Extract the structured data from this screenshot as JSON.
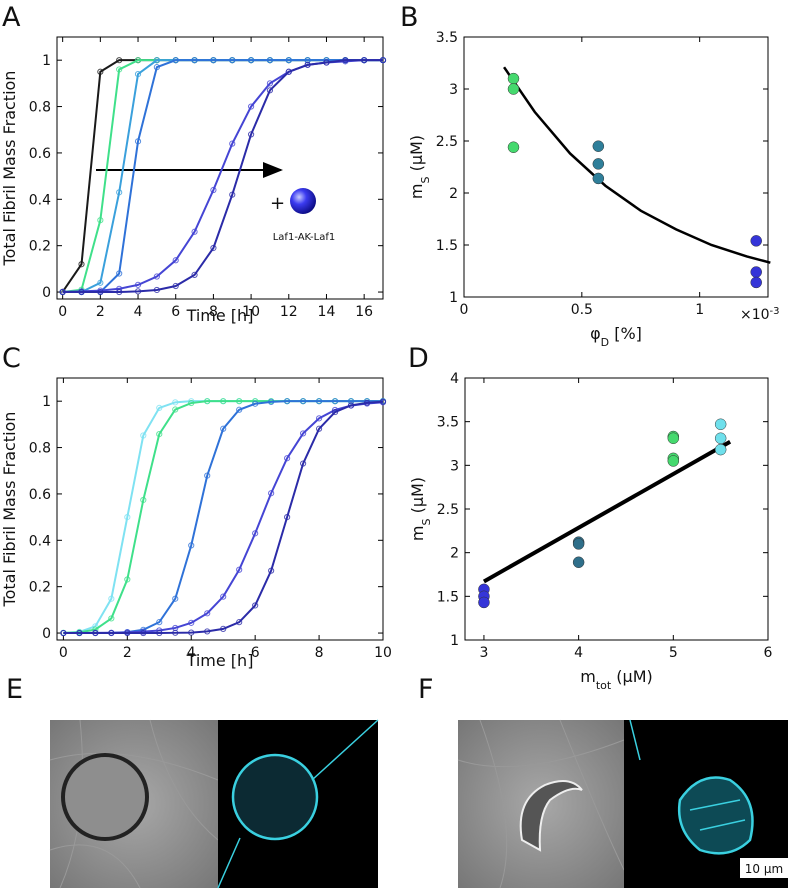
{
  "chart_data": [
    {
      "type": "line",
      "panel_label": "A",
      "ylabel": "Total Fibril Mass Fraction",
      "xlabel": "Time [h]",
      "xlim": [
        -0.3,
        17
      ],
      "xticks": [
        0,
        2,
        4,
        6,
        8,
        10,
        12,
        14,
        16
      ],
      "ylim": [
        -0.03,
        1.1
      ],
      "yticks": [
        0,
        0.2,
        0.4,
        0.6,
        0.8,
        1
      ],
      "marker": "circle",
      "annotations": [
        "+",
        "Laf1-AK-Laf1"
      ],
      "x": [
        0,
        1,
        2,
        3,
        4,
        5,
        6,
        7,
        8,
        9,
        10,
        11,
        12,
        13,
        14,
        15,
        16,
        17
      ],
      "series": [
        {
          "color": "#1a1a1a",
          "values": [
            0.001,
            0.12,
            0.95,
            1,
            1,
            1,
            1,
            1,
            1,
            1,
            1,
            1,
            1,
            1,
            1,
            1,
            1,
            1
          ]
        },
        {
          "color": "#3fe08a",
          "values": [
            0,
            0.01,
            0.31,
            0.96,
            1,
            1,
            1,
            1,
            1,
            1,
            1,
            1,
            1,
            1,
            1,
            1,
            1,
            1
          ]
        },
        {
          "color": "#3aa0dc",
          "values": [
            0,
            0,
            0.04,
            0.43,
            0.94,
            1,
            1,
            1,
            1,
            1,
            1,
            1,
            1,
            1,
            1,
            1,
            1,
            1
          ]
        },
        {
          "color": "#2f72d8",
          "values": [
            0,
            0,
            0,
            0.08,
            0.65,
            0.97,
            1,
            1,
            1,
            1,
            1,
            1,
            1,
            1,
            1,
            1,
            1,
            1
          ]
        },
        {
          "color": "#4545d4",
          "values": [
            0.001,
            0.003,
            0.006,
            0.014,
            0.031,
            0.067,
            0.137,
            0.26,
            0.44,
            0.64,
            0.8,
            0.9,
            0.95,
            0.98,
            0.99,
            0.995,
            1,
            1
          ]
        },
        {
          "color": "#2b2ba8",
          "values": [
            0,
            0,
            0,
            0,
            0.003,
            0.009,
            0.026,
            0.074,
            0.19,
            0.42,
            0.68,
            0.87,
            0.95,
            0.98,
            0.99,
            1,
            1,
            1
          ]
        }
      ]
    },
    {
      "type": "scatter",
      "panel_label": "B",
      "ylabel": {
        "main": "m",
        "sub": "S",
        "unit": " (μM)"
      },
      "xlabel": {
        "main": "φ",
        "sub": "D",
        "unit": " [%]"
      },
      "multiplier": {
        "main": "×10",
        "sup": "-3"
      },
      "xlim": [
        0,
        1.29
      ],
      "xticks": [
        0,
        0.5,
        1
      ],
      "ylim": [
        1,
        3.5
      ],
      "yticks": [
        1,
        1.5,
        2,
        2.5,
        3,
        3.5
      ],
      "series": [
        {
          "color": "#45d96e",
          "x": [
            0.21,
            0.21,
            0.21
          ],
          "values": [
            3.1,
            3.0,
            2.44
          ]
        },
        {
          "color": "#2f7f9a",
          "x": [
            0.57,
            0.57,
            0.57
          ],
          "values": [
            2.45,
            2.28,
            2.14
          ]
        },
        {
          "color": "#3535d8",
          "x": [
            1.24,
            1.24,
            1.24
          ],
          "values": [
            1.54,
            1.24,
            1.14
          ]
        }
      ],
      "fit": {
        "color": "#000000",
        "x": [
          0.17,
          0.3,
          0.45,
          0.6,
          0.75,
          0.9,
          1.05,
          1.2,
          1.3
        ],
        "values": [
          3.21,
          2.78,
          2.38,
          2.07,
          1.83,
          1.65,
          1.5,
          1.39,
          1.33
        ]
      }
    },
    {
      "type": "line",
      "panel_label": "C",
      "ylabel": "Total Fibril Mass Fraction",
      "xlabel": "Time [h]",
      "xlim": [
        -0.2,
        10
      ],
      "xticks": [
        0,
        2,
        4,
        6,
        8,
        10
      ],
      "ylim": [
        -0.03,
        1.1
      ],
      "yticks": [
        0,
        0.2,
        0.4,
        0.6,
        0.8,
        1
      ],
      "marker": "circle",
      "x": [
        0,
        0.5,
        1,
        1.5,
        2,
        2.5,
        3,
        3.5,
        4,
        4.5,
        5,
        5.5,
        6,
        6.5,
        7,
        7.5,
        8,
        8.5,
        9,
        9.5,
        10
      ],
      "series": [
        {
          "color": "#7fe2f2",
          "values": [
            0.001,
            0.005,
            0.029,
            0.148,
            0.5,
            0.852,
            0.971,
            0.995,
            1,
            1,
            1,
            1,
            1,
            1,
            1,
            1,
            1,
            1,
            1,
            1,
            1
          ]
        },
        {
          "color": "#3fe08a",
          "values": [
            0.001,
            0.003,
            0.015,
            0.063,
            0.231,
            0.574,
            0.858,
            0.964,
            0.992,
            1,
            1,
            1,
            1,
            1,
            1,
            1,
            1,
            1,
            1,
            1,
            1
          ]
        },
        {
          "color": "#2f72d8",
          "values": [
            0,
            0,
            0,
            0.001,
            0.004,
            0.014,
            0.047,
            0.148,
            0.378,
            0.679,
            0.881,
            0.963,
            0.989,
            0.997,
            1,
            1,
            1,
            1,
            1,
            1,
            1
          ]
        },
        {
          "color": "#4545d4",
          "values": [
            0,
            0,
            0.001,
            0.001,
            0.003,
            0.006,
            0.011,
            0.022,
            0.044,
            0.085,
            0.157,
            0.273,
            0.43,
            0.603,
            0.754,
            0.861,
            0.926,
            0.962,
            0.981,
            0.99,
            0.995
          ]
        },
        {
          "color": "#2b2ba8",
          "values": [
            0,
            0,
            0,
            0,
            0,
            0,
            0,
            0.001,
            0.002,
            0.007,
            0.018,
            0.047,
            0.119,
            0.269,
            0.5,
            0.731,
            0.881,
            0.953,
            0.982,
            0.993,
            0.998
          ]
        }
      ]
    },
    {
      "type": "scatter",
      "panel_label": "D",
      "ylabel": {
        "main": "m",
        "sub": "S",
        "unit": " (μM)"
      },
      "xlabel": {
        "main": "m",
        "sub": "tot",
        "unit": " (μM)"
      },
      "xlim": [
        2.8,
        6
      ],
      "xticks": [
        3,
        4,
        5,
        6
      ],
      "ylim": [
        1,
        4
      ],
      "yticks": [
        1,
        1.5,
        2,
        2.5,
        3,
        3.5,
        4
      ],
      "series": [
        {
          "color": "#3535d8",
          "x": [
            3,
            3,
            3
          ],
          "values": [
            1.58,
            1.5,
            1.43
          ]
        },
        {
          "color": "#2f6f8a",
          "x": [
            4,
            4,
            4
          ],
          "values": [
            2.12,
            2.1,
            1.89
          ]
        },
        {
          "color": "#45d96e",
          "x": [
            5,
            5,
            5,
            5
          ],
          "values": [
            3.33,
            3.31,
            3.08,
            3.05
          ]
        },
        {
          "color": "#6fe0ec",
          "x": [
            5.5,
            5.5,
            5.5
          ],
          "values": [
            3.47,
            3.31,
            3.18
          ]
        }
      ],
      "fit": {
        "color": "#000000",
        "x": [
          3,
          5.6
        ],
        "values": [
          1.67,
          3.27
        ]
      }
    }
  ],
  "images": [
    {
      "label": "E"
    },
    {
      "label": "F",
      "scale_bar": "10 μm"
    }
  ]
}
